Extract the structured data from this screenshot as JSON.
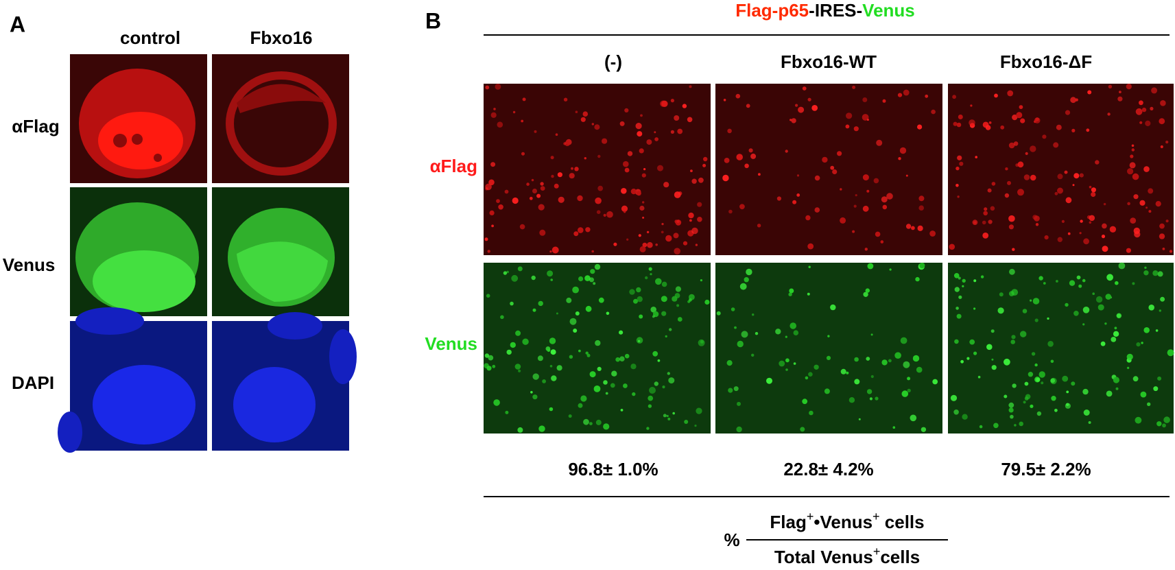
{
  "panel_a": {
    "label": "A",
    "columns": [
      "control",
      "Fbxo16"
    ],
    "rows": [
      "αFlag",
      "Venus",
      "DAPI"
    ]
  },
  "panel_b": {
    "label": "B",
    "header": {
      "part1": "Flag-p65",
      "part2": "-IRES-",
      "part3": "Venus"
    },
    "columns": [
      "(-)",
      "Fbxo16-WT",
      "Fbxo16-ΔF"
    ],
    "rows": [
      "αFlag",
      "Venus"
    ],
    "quantification": [
      "96.8± 1.0%",
      "22.8± 4.2%",
      "79.5± 2.2%"
    ],
    "formula": {
      "prefix": "%",
      "numerator": {
        "t1": "Flag",
        "s1": "+",
        "t2": "•Venus",
        "s2": "+",
        "t3": " cells"
      },
      "denominator": {
        "t1": "Total Venus",
        "s1": "+",
        "t2": "cells"
      }
    }
  }
}
